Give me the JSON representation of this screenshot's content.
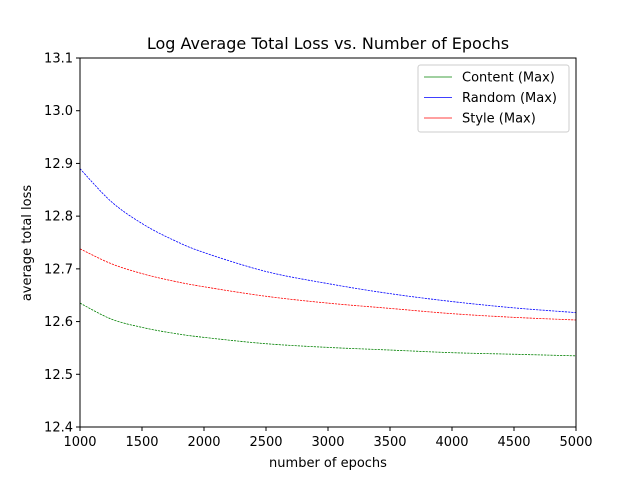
{
  "chart_data": {
    "type": "line",
    "title": "Log Average Total Loss vs. Number of Epochs",
    "xlabel": "number of epochs",
    "ylabel": "average total loss",
    "xlim": [
      1000,
      5000
    ],
    "ylim": [
      12.4,
      13.1
    ],
    "xticks": [
      "1000",
      "1500",
      "2000",
      "2500",
      "3000",
      "3500",
      "4000",
      "4500",
      "5000"
    ],
    "yticks": [
      "12.4",
      "12.5",
      "12.6",
      "12.7",
      "12.8",
      "12.9",
      "13.0",
      "13.1"
    ],
    "grid": false,
    "legend_position": "top-right",
    "x": [
      1000,
      1250,
      1500,
      1750,
      2000,
      2500,
      3000,
      3500,
      4000,
      4500,
      5000
    ],
    "series": [
      {
        "name": "Content (Max)",
        "color": "#008000",
        "values": [
          12.635,
          12.605,
          12.589,
          12.578,
          12.57,
          12.558,
          12.551,
          12.546,
          12.541,
          12.538,
          12.535
        ]
      },
      {
        "name": "Random (Max)",
        "color": "#0000ff",
        "values": [
          12.89,
          12.828,
          12.786,
          12.755,
          12.731,
          12.695,
          12.672,
          12.653,
          12.638,
          12.626,
          12.617
        ]
      },
      {
        "name": "Style (Max)",
        "color": "#ff0000",
        "values": [
          12.738,
          12.71,
          12.691,
          12.677,
          12.666,
          12.648,
          12.635,
          12.625,
          12.615,
          12.608,
          12.603
        ]
      }
    ]
  }
}
